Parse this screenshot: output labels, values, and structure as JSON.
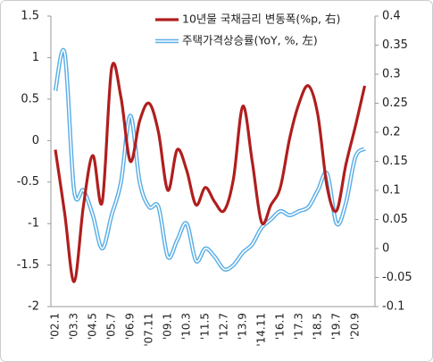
{
  "chart_data": {
    "type": "line",
    "categories": [
      "'02.1",
      null,
      "'03.3",
      null,
      "'04.5",
      null,
      "'05.7",
      null,
      "'06.9",
      null,
      "'07.11",
      null,
      "'09.1",
      null,
      "'10.3",
      null,
      "'11.5",
      null,
      "'12.7",
      null,
      "'13.9",
      null,
      "'14.11",
      null,
      "'16.1",
      null,
      "'17.3",
      null,
      "'18.5",
      null,
      "'19.7",
      null,
      "'20.9",
      null
    ],
    "series": [
      {
        "name": "10년물 국채금리 변동폭(%p, 右)",
        "color": "#b01e1e",
        "axis": "y2",
        "values": [
          0.17,
          0.06,
          -0.057,
          0.074,
          0.16,
          0.08,
          0.31,
          0.26,
          0.15,
          0.22,
          0.25,
          0.2,
          0.1,
          0.17,
          0.135,
          0.075,
          0.105,
          0.08,
          0.065,
          0.12,
          0.245,
          0.15,
          0.045,
          0.075,
          0.105,
          0.19,
          0.25,
          0.28,
          0.23,
          0.105,
          0.065,
          0.145,
          0.21,
          0.28
        ]
      },
      {
        "name": "주택가격상승률(YoY, %, 左)",
        "color": "#5aaee6",
        "style": "double",
        "values": [
          0.6,
          1.05,
          -0.6,
          -0.6,
          -0.9,
          -1.3,
          -0.9,
          -0.5,
          0.3,
          -0.5,
          -0.8,
          -0.8,
          -1.4,
          -1.2,
          -1.0,
          -1.45,
          -1.3,
          -1.4,
          -1.55,
          -1.5,
          -1.35,
          -1.25,
          -1.05,
          -0.95,
          -0.85,
          -0.9,
          -0.85,
          -0.8,
          -0.6,
          -0.4,
          -1.0,
          -0.75,
          -0.2,
          -0.1
        ]
      }
    ],
    "ylim": [
      -2,
      1.5
    ],
    "yticks": [
      1.5,
      1,
      0.5,
      0,
      -0.5,
      -1,
      -1.5,
      -2
    ],
    "y2lim": [
      -0.1,
      0.4
    ],
    "y2ticks": [
      0.4,
      0.35,
      0.3,
      0.25,
      0.2,
      0.15,
      0.1,
      0.05,
      0,
      -0.05,
      -0.1
    ]
  }
}
